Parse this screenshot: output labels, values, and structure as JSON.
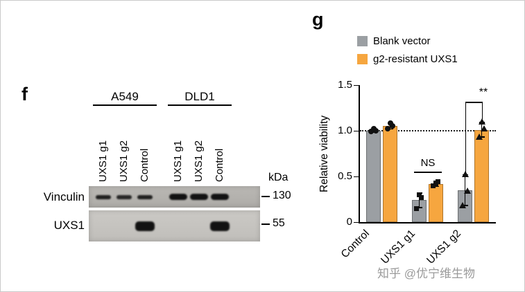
{
  "panel_f": {
    "label": "f",
    "cell_lines": [
      "A549",
      "DLD1"
    ],
    "lanes": [
      "UXS1 g1",
      "UXS1 g2",
      "Control",
      "UXS1 g1",
      "UXS1 g2",
      "Control"
    ],
    "kda_label": "kDa",
    "rows": [
      {
        "name": "Vinculin",
        "marker": "130",
        "bands": [
          0.8,
          0.7,
          0.8,
          1,
          1,
          1
        ]
      },
      {
        "name": "UXS1",
        "marker": "55",
        "bands": [
          0,
          0,
          1,
          0,
          0,
          1
        ]
      }
    ]
  },
  "panel_g": {
    "label": "g",
    "watermark": "知乎 @优宁维生物"
  },
  "chart_data": {
    "type": "bar",
    "title": "",
    "ylabel": "Relative viability",
    "ylim": [
      0,
      1.5
    ],
    "yticks": [
      0,
      0.5,
      1.0,
      1.5
    ],
    "ytick_labels": [
      "0",
      "0.5",
      "1.0",
      "1.5"
    ],
    "reference_line": 1.0,
    "grid": false,
    "legend_position": "top-right",
    "categories": [
      "Control",
      "UXS1 g1",
      "UXS1 g2"
    ],
    "markers_by_category": [
      "circle",
      "square",
      "triangle"
    ],
    "series": [
      {
        "name": "Blank vector",
        "color": "#9b9fa3",
        "values": [
          1.0,
          0.24,
          0.35
        ],
        "errors": [
          0.02,
          0.08,
          0.17
        ],
        "points": [
          [
            0.99,
            1.0,
            1.02
          ],
          [
            0.15,
            0.27,
            0.3
          ],
          [
            0.18,
            0.34,
            0.52
          ]
        ]
      },
      {
        "name": "g2-resistant UXS1",
        "color": "#f6a63f",
        "values": [
          1.05,
          0.42,
          1.01
        ],
        "errors": [
          0.03,
          0.03,
          0.08
        ],
        "points": [
          [
            1.02,
            1.05,
            1.08
          ],
          [
            0.4,
            0.44,
            0.42
          ],
          [
            0.93,
            1.02,
            1.1
          ]
        ]
      }
    ],
    "annotations": [
      {
        "text": "NS",
        "category": "UXS1 g1",
        "style": "underline"
      },
      {
        "text": "**",
        "category": "UXS1 g2",
        "style": "bracket"
      }
    ]
  }
}
